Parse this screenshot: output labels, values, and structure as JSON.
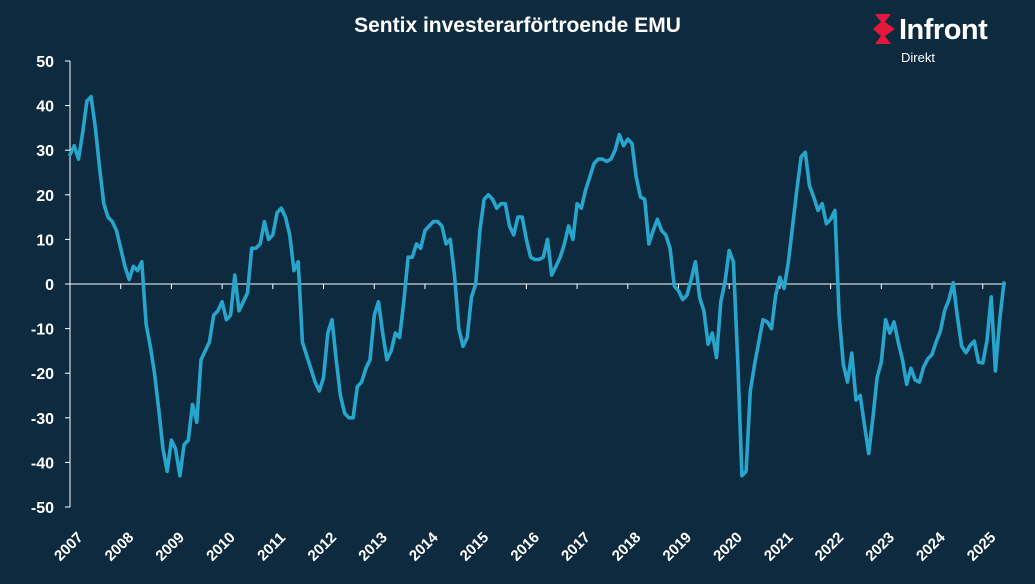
{
  "header": {
    "title": "Sentix investerarförtroende EMU"
  },
  "brand": {
    "name": "Infront",
    "sub": "Direkt",
    "accent_color": "#e4183c",
    "icon": "infront-logo-icon"
  },
  "colors": {
    "background": "#0d2a3e",
    "line": "#27a5cc",
    "axis": "#ffffff"
  },
  "chart_data": {
    "type": "line",
    "title": "Sentix investerarförtroende EMU",
    "xlabel": "",
    "ylabel": "",
    "ylim": [
      -50,
      50
    ],
    "yticks": [
      50,
      40,
      30,
      20,
      10,
      0,
      -10,
      -20,
      -30,
      -40,
      -50
    ],
    "xticks": [
      "2007",
      "2008",
      "2009",
      "2010",
      "2011",
      "2012",
      "2013",
      "2014",
      "2015",
      "2016",
      "2017",
      "2018",
      "2019",
      "2020",
      "2021",
      "2022",
      "2023",
      "2024",
      "2025"
    ],
    "grid": false,
    "legend": "none",
    "series": [
      {
        "points": [
          [
            "2007-01",
            29
          ],
          [
            "2007-02",
            31
          ],
          [
            "2007-03",
            28
          ],
          [
            "2007-04",
            34
          ],
          [
            "2007-05",
            41
          ],
          [
            "2007-06",
            42
          ],
          [
            "2007-07",
            35
          ],
          [
            "2007-08",
            26
          ],
          [
            "2007-09",
            18
          ],
          [
            "2007-10",
            15
          ],
          [
            "2007-11",
            14
          ],
          [
            "2007-12",
            12
          ],
          [
            "2008-01",
            8
          ],
          [
            "2008-02",
            4
          ],
          [
            "2008-03",
            1
          ],
          [
            "2008-04",
            4
          ],
          [
            "2008-05",
            3
          ],
          [
            "2008-06",
            5
          ],
          [
            "2008-07",
            -9
          ],
          [
            "2008-08",
            -14
          ],
          [
            "2008-09",
            -20
          ],
          [
            "2008-10",
            -28
          ],
          [
            "2008-11",
            -37
          ],
          [
            "2008-12",
            -42
          ],
          [
            "2009-01",
            -35
          ],
          [
            "2009-02",
            -37
          ],
          [
            "2009-03",
            -43
          ],
          [
            "2009-04",
            -36
          ],
          [
            "2009-05",
            -35
          ],
          [
            "2009-06",
            -27
          ],
          [
            "2009-07",
            -31
          ],
          [
            "2009-08",
            -17
          ],
          [
            "2009-09",
            -15
          ],
          [
            "2009-10",
            -13
          ],
          [
            "2009-11",
            -7
          ],
          [
            "2009-12",
            -6
          ],
          [
            "2010-01",
            -4
          ],
          [
            "2010-02",
            -8
          ],
          [
            "2010-03",
            -7
          ],
          [
            "2010-04",
            2
          ],
          [
            "2010-05",
            -6
          ],
          [
            "2010-06",
            -4
          ],
          [
            "2010-07",
            -2
          ],
          [
            "2010-08",
            8
          ],
          [
            "2010-09",
            8
          ],
          [
            "2010-10",
            9
          ],
          [
            "2010-11",
            14
          ],
          [
            "2010-12",
            10
          ],
          [
            "2011-01",
            11
          ],
          [
            "2011-02",
            16
          ],
          [
            "2011-03",
            17
          ],
          [
            "2011-04",
            15
          ],
          [
            "2011-05",
            11
          ],
          [
            "2011-06",
            3
          ],
          [
            "2011-07",
            5
          ],
          [
            "2011-08",
            -13
          ],
          [
            "2011-09",
            -16
          ],
          [
            "2011-10",
            -19
          ],
          [
            "2011-11",
            -22
          ],
          [
            "2011-12",
            -24
          ],
          [
            "2012-01",
            -21
          ],
          [
            "2012-02",
            -11
          ],
          [
            "2012-03",
            -8
          ],
          [
            "2012-04",
            -17
          ],
          [
            "2012-05",
            -25
          ],
          [
            "2012-06",
            -29
          ],
          [
            "2012-07",
            -30
          ],
          [
            "2012-08",
            -30
          ],
          [
            "2012-09",
            -23
          ],
          [
            "2012-10",
            -22
          ],
          [
            "2012-11",
            -19
          ],
          [
            "2012-12",
            -17
          ],
          [
            "2013-01",
            -7
          ],
          [
            "2013-02",
            -4
          ],
          [
            "2013-03",
            -11
          ],
          [
            "2013-04",
            -17
          ],
          [
            "2013-05",
            -15
          ],
          [
            "2013-06",
            -11
          ],
          [
            "2013-07",
            -12
          ],
          [
            "2013-08",
            -4
          ],
          [
            "2013-09",
            6
          ],
          [
            "2013-10",
            6
          ],
          [
            "2013-11",
            9
          ],
          [
            "2013-12",
            8
          ],
          [
            "2014-01",
            12
          ],
          [
            "2014-02",
            13
          ],
          [
            "2014-03",
            14
          ],
          [
            "2014-04",
            14
          ],
          [
            "2014-05",
            13
          ],
          [
            "2014-06",
            9
          ],
          [
            "2014-07",
            10
          ],
          [
            "2014-08",
            2
          ],
          [
            "2014-09",
            -10
          ],
          [
            "2014-10",
            -14
          ],
          [
            "2014-11",
            -12
          ],
          [
            "2014-12",
            -3
          ],
          [
            "2015-01",
            0
          ],
          [
            "2015-02",
            12
          ],
          [
            "2015-03",
            19
          ],
          [
            "2015-04",
            20
          ],
          [
            "2015-05",
            19
          ],
          [
            "2015-06",
            17
          ],
          [
            "2015-07",
            18
          ],
          [
            "2015-08",
            18
          ],
          [
            "2015-09",
            13
          ],
          [
            "2015-10",
            11
          ],
          [
            "2015-11",
            15
          ],
          [
            "2015-12",
            15
          ],
          [
            "2016-01",
            10
          ],
          [
            "2016-02",
            6
          ],
          [
            "2016-03",
            5.5
          ],
          [
            "2016-04",
            5.5
          ],
          [
            "2016-05",
            6
          ],
          [
            "2016-06",
            10
          ],
          [
            "2016-07",
            2
          ],
          [
            "2016-08",
            4
          ],
          [
            "2016-09",
            6
          ],
          [
            "2016-10",
            9
          ],
          [
            "2016-11",
            13
          ],
          [
            "2016-12",
            10
          ],
          [
            "2017-01",
            18
          ],
          [
            "2017-02",
            17
          ],
          [
            "2017-03",
            21
          ],
          [
            "2017-04",
            24
          ],
          [
            "2017-05",
            27
          ],
          [
            "2017-06",
            28
          ],
          [
            "2017-07",
            28
          ],
          [
            "2017-08",
            27.5
          ],
          [
            "2017-09",
            28
          ],
          [
            "2017-10",
            30
          ],
          [
            "2017-11",
            33.5
          ],
          [
            "2017-12",
            31
          ],
          [
            "2018-01",
            32.5
          ],
          [
            "2018-02",
            31.5
          ],
          [
            "2018-03",
            24
          ],
          [
            "2018-04",
            19.5
          ],
          [
            "2018-05",
            19
          ],
          [
            "2018-06",
            9
          ],
          [
            "2018-07",
            12
          ],
          [
            "2018-08",
            14.5
          ],
          [
            "2018-09",
            12
          ],
          [
            "2018-10",
            11
          ],
          [
            "2018-11",
            8
          ],
          [
            "2018-12",
            -0.5
          ],
          [
            "2019-01",
            -1.5
          ],
          [
            "2019-02",
            -3.5
          ],
          [
            "2019-03",
            -2.5
          ],
          [
            "2019-04",
            1
          ],
          [
            "2019-05",
            5
          ],
          [
            "2019-06",
            -3
          ],
          [
            "2019-07",
            -6
          ],
          [
            "2019-08",
            -13.5
          ],
          [
            "2019-09",
            -11
          ],
          [
            "2019-10",
            -16.5
          ],
          [
            "2019-11",
            -4
          ],
          [
            "2019-12",
            0.5
          ],
          [
            "2020-01",
            7.5
          ],
          [
            "2020-02",
            5
          ],
          [
            "2020-03",
            -17
          ],
          [
            "2020-04",
            -43
          ],
          [
            "2020-05",
            -42
          ],
          [
            "2020-06",
            -24
          ],
          [
            "2020-07",
            -18
          ],
          [
            "2020-08",
            -13
          ],
          [
            "2020-09",
            -8
          ],
          [
            "2020-10",
            -8.5
          ],
          [
            "2020-11",
            -10
          ],
          [
            "2020-12",
            -2.5
          ],
          [
            "2021-01",
            1.5
          ],
          [
            "2021-02",
            -1
          ],
          [
            "2021-03",
            5
          ],
          [
            "2021-04",
            13
          ],
          [
            "2021-05",
            21
          ],
          [
            "2021-06",
            28.5
          ],
          [
            "2021-07",
            29.5
          ],
          [
            "2021-08",
            22
          ],
          [
            "2021-09",
            19.5
          ],
          [
            "2021-10",
            16.5
          ],
          [
            "2021-11",
            18
          ],
          [
            "2021-12",
            13.5
          ],
          [
            "2022-01",
            14.5
          ],
          [
            "2022-02",
            16.5
          ],
          [
            "2022-03",
            -7
          ],
          [
            "2022-04",
            -18
          ],
          [
            "2022-05",
            -22
          ],
          [
            "2022-06",
            -15.5
          ],
          [
            "2022-07",
            -26
          ],
          [
            "2022-08",
            -25
          ],
          [
            "2022-09",
            -31.5
          ],
          [
            "2022-10",
            -38
          ],
          [
            "2022-11",
            -30
          ],
          [
            "2022-12",
            -21
          ],
          [
            "2023-01",
            -17.5
          ],
          [
            "2023-02",
            -8
          ],
          [
            "2023-03",
            -11
          ],
          [
            "2023-04",
            -8.5
          ],
          [
            "2023-05",
            -13
          ],
          [
            "2023-06",
            -17
          ],
          [
            "2023-07",
            -22.5
          ],
          [
            "2023-08",
            -18.9
          ],
          [
            "2023-09",
            -21.5
          ],
          [
            "2023-10",
            -22
          ],
          [
            "2023-11",
            -18.6
          ],
          [
            "2023-12",
            -16.8
          ],
          [
            "2024-01",
            -15.8
          ],
          [
            "2024-02",
            -12.9
          ],
          [
            "2024-03",
            -10.5
          ],
          [
            "2024-04",
            -5.9
          ],
          [
            "2024-05",
            -3.5
          ],
          [
            "2024-06",
            0.3
          ],
          [
            "2024-07",
            -7.3
          ],
          [
            "2024-08",
            -13.9
          ],
          [
            "2024-09",
            -15.4
          ],
          [
            "2024-10",
            -13.8
          ],
          [
            "2024-11",
            -12.8
          ],
          [
            "2024-12",
            -17.5
          ],
          [
            "2025-01",
            -17.7
          ],
          [
            "2025-02",
            -12.7
          ],
          [
            "2025-03",
            -2.9
          ],
          [
            "2025-04",
            -19.5
          ],
          [
            "2025-05",
            -8.1
          ],
          [
            "2025-06",
            0.2
          ]
        ]
      }
    ]
  }
}
